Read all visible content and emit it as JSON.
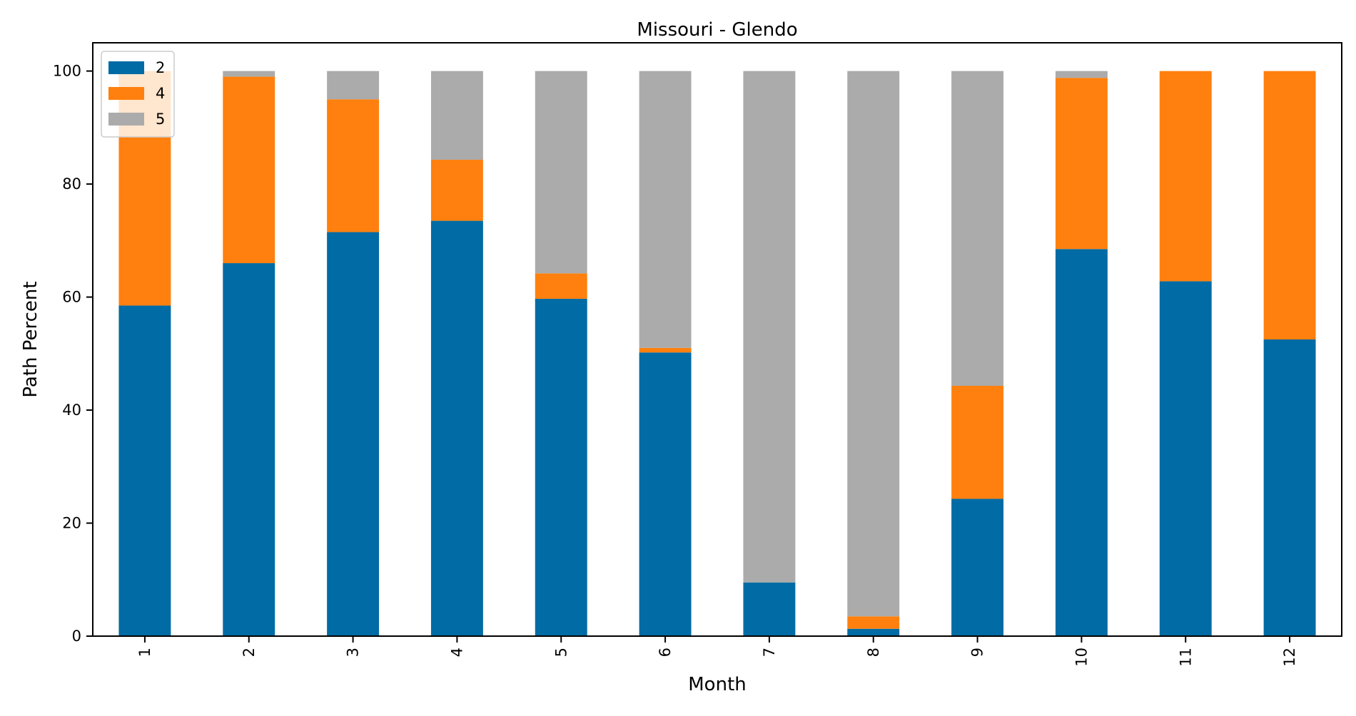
{
  "chart_data": {
    "type": "bar",
    "stacked": true,
    "title": "Missouri - Glendo",
    "xlabel": "Month",
    "ylabel": "Path Percent",
    "ylim": [
      0,
      105
    ],
    "yticks": [
      0,
      20,
      40,
      60,
      80,
      100
    ],
    "grid": false,
    "legend_position": "top-left",
    "categories": [
      "1",
      "2",
      "3",
      "4",
      "5",
      "6",
      "7",
      "8",
      "9",
      "10",
      "11",
      "12"
    ],
    "series": [
      {
        "name": "2",
        "color": "#006ba4",
        "values": [
          58.5,
          66.0,
          71.5,
          73.5,
          59.7,
          50.2,
          9.5,
          1.3,
          24.3,
          68.5,
          62.8,
          52.5
        ]
      },
      {
        "name": "4",
        "color": "#ff800e",
        "values": [
          41.5,
          33.0,
          23.5,
          10.8,
          4.5,
          0.8,
          0.0,
          2.2,
          20.0,
          30.3,
          37.2,
          47.5
        ]
      },
      {
        "name": "5",
        "color": "#ababab",
        "values": [
          0.0,
          1.0,
          5.0,
          15.7,
          35.8,
          49.0,
          90.5,
          96.5,
          55.7,
          1.2,
          0.0,
          0.0
        ]
      }
    ]
  }
}
